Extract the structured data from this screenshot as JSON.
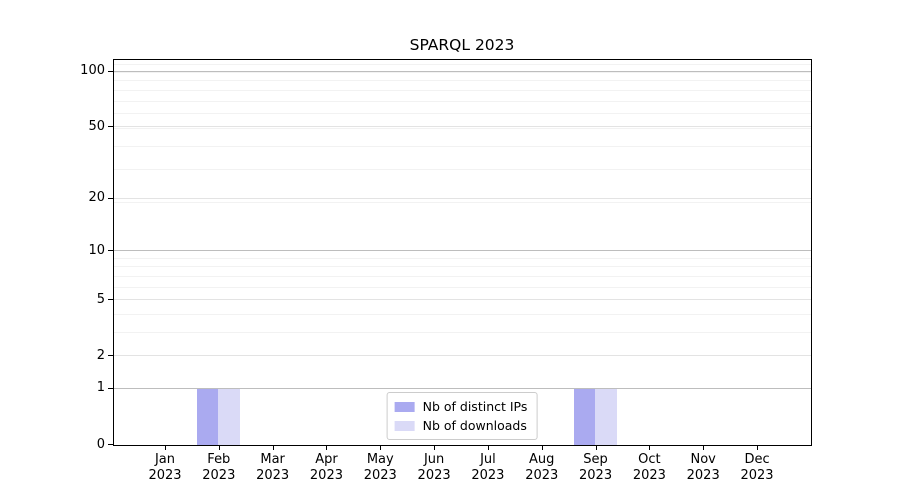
{
  "chart_data": {
    "type": "bar",
    "title": "SPARQL 2023",
    "categories": [
      "Jan 2023",
      "Feb 2023",
      "Mar 2023",
      "Apr 2023",
      "May 2023",
      "Jun 2023",
      "Jul 2023",
      "Aug 2023",
      "Sep 2023",
      "Oct 2023",
      "Nov 2023",
      "Dec 2023"
    ],
    "series": [
      {
        "name": "Nb of distinct IPs",
        "color": "#aaaaf0",
        "values": [
          0,
          1,
          0,
          0,
          0,
          0,
          0,
          0,
          1,
          0,
          0,
          0
        ]
      },
      {
        "name": "Nb of downloads",
        "color": "#dadaf7",
        "values": [
          0,
          1,
          0,
          0,
          0,
          0,
          0,
          0,
          1,
          0,
          0,
          0
        ]
      }
    ],
    "xlabel": "",
    "ylabel": "",
    "yscale": "log1p",
    "yticks": [
      0,
      1,
      2,
      5,
      10,
      20,
      50,
      100
    ],
    "ylim": [
      0,
      115
    ],
    "grid": "both",
    "legend_position": "lower center"
  },
  "colors": {
    "strong_grid": "#bdbdbd",
    "major_grid": "#e3e3e3",
    "minor_grid": "#f2f2f2",
    "spine": "#000000"
  }
}
